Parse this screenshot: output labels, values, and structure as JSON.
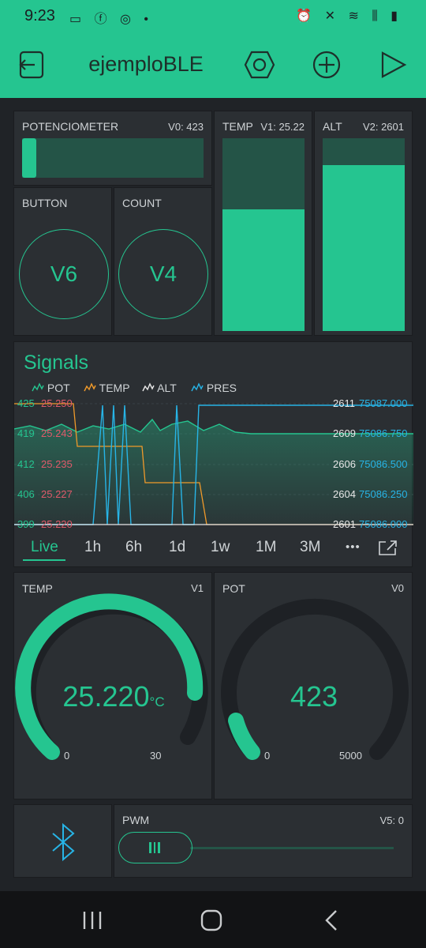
{
  "status": {
    "time": "9:23",
    "left_icons": "▭ ⓕ ◎ •",
    "right_icons": "⏰ ✕ ≋ ⫼ ▮"
  },
  "app": {
    "title": "ejemploBLE"
  },
  "potenciometer": {
    "label": "POTENCIOMETER",
    "pin": "V0: 423",
    "value": 423,
    "max": 5000
  },
  "temp_bar": {
    "label": "TEMP",
    "pin": "V1: 25.22",
    "fill_fraction": 0.63
  },
  "alt_bar": {
    "label": "ALT",
    "pin": "V2: 2601",
    "fill_fraction": 0.88
  },
  "button": {
    "label": "BUTTON",
    "pin_text": "V6"
  },
  "count": {
    "label": "COUNT",
    "pin_text": "V4"
  },
  "signals": {
    "title": "Signals",
    "legend": [
      {
        "name": "POT",
        "color": "#25c590"
      },
      {
        "name": "TEMP",
        "color": "#f09a2a"
      },
      {
        "name": "ALT",
        "color": "#e8e8e8"
      },
      {
        "name": "PRES",
        "color": "#27b4e6"
      }
    ],
    "left_ticks_pot": [
      "425",
      "419",
      "412",
      "406",
      "399"
    ],
    "left_ticks_temp": [
      "25.250",
      "25.243",
      "25.235",
      "25.227",
      "25.220"
    ],
    "right_ticks_alt": [
      "2611",
      "2609",
      "2606",
      "2604",
      "2601"
    ],
    "right_ticks_pres": [
      "75087.000",
      "75086.750",
      "75086.500",
      "75086.250",
      "75086.000"
    ],
    "tabs": [
      "Live",
      "1h",
      "6h",
      "1d",
      "1w",
      "1M",
      "3M"
    ],
    "more": "•••"
  },
  "gauge_temp": {
    "label": "TEMP",
    "pin": "V1",
    "value_text": "25.220",
    "unit": "°C",
    "min": "0",
    "max": "30",
    "value": 25.22,
    "range": [
      0,
      30
    ]
  },
  "gauge_pot": {
    "label": "POT",
    "pin": "V0",
    "value_text": "423",
    "min": "0",
    "max": "5000",
    "value": 423,
    "range": [
      0,
      5000
    ]
  },
  "pwm": {
    "label": "PWM",
    "pin": "V5: 0",
    "value": 0
  },
  "colors": {
    "accent": "#25c590",
    "background": "#202327",
    "card": "#2b2f33",
    "pres": "#27b4e6",
    "temp_line": "#f09a2a",
    "temp_axis": "#e05a6a"
  }
}
